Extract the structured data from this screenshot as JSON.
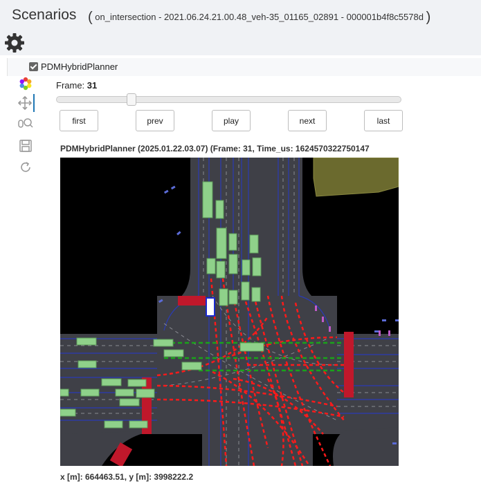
{
  "header": {
    "title": "Scenarios",
    "subtitle": "on_intersection - 2021.06.24.21.00.48_veh-35_01165_02891 - 000001b4f8c5578d",
    "open_paren": "(",
    "close_paren": ")",
    "settings_icon": "gear-icon"
  },
  "planner": {
    "label": "PDMHybridPlanner",
    "checked": true
  },
  "toolbar": {
    "tools": [
      "bokeh-logo-icon",
      "pan-icon",
      "wheel-zoom-icon",
      "save-icon",
      "reset-icon"
    ],
    "active_tool": "pan-icon"
  },
  "frame": {
    "label": "Frame:",
    "value": "31",
    "slider_fraction": 0.21
  },
  "buttons": {
    "first": "first",
    "prev": "prev",
    "play": "play",
    "next": "next",
    "last": "last"
  },
  "plot": {
    "title": "PDMHybridPlanner (2025.01.22.03.07) (Frame: 31, Time_us: 1624570322750147",
    "colors": {
      "background": "#000000",
      "road": "#3f4047",
      "lane_line": "#2a3bb5",
      "vehicle": "#8fd18a",
      "ego": "#ffffff",
      "stop_line": "#c0182b",
      "trajectory_red": "#ff1a1a",
      "trajectory_green": "#1aa31a",
      "crosswalk": "#6b6a2e"
    }
  },
  "coordinates": "x [m]: 664463.51, y [m]: 3998222.2"
}
